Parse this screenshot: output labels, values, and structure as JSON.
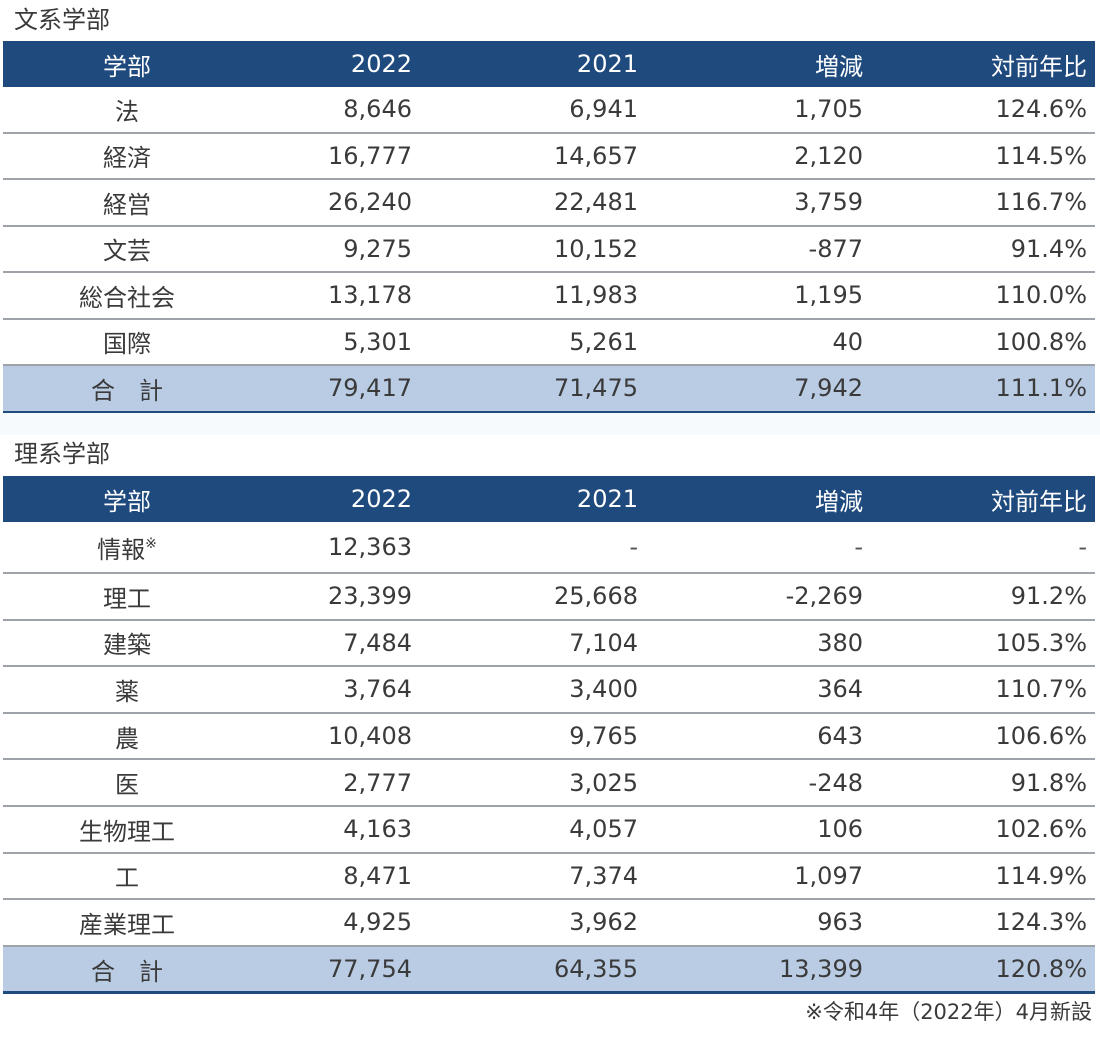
{
  "section1": {
    "title": "文系学部",
    "headers": [
      "学部",
      "2022",
      "2021",
      "増減",
      "対前年比"
    ],
    "rows": [
      [
        "法",
        "8,646",
        "6,941",
        "1,705",
        "124.6%"
      ],
      [
        "経済",
        "16,777",
        "14,657",
        "2,120",
        "114.5%"
      ],
      [
        "経営",
        "26,240",
        "22,481",
        "3,759",
        "116.7%"
      ],
      [
        "文芸",
        "9,275",
        "10,152",
        "-877",
        "91.4%"
      ],
      [
        "総合社会",
        "13,178",
        "11,983",
        "1,195",
        "110.0%"
      ],
      [
        "国際",
        "5,301",
        "5,261",
        "40",
        "100.8%"
      ]
    ],
    "total": [
      "合　計",
      "79,417",
      "71,475",
      "7,942",
      "111.1%"
    ]
  },
  "section2": {
    "title": "理系学部",
    "headers": [
      "学部",
      "2022",
      "2021",
      "増減",
      "対前年比"
    ],
    "rows": [
      [
        "情報",
        "12,363",
        "-",
        "-",
        "-"
      ],
      [
        "理工",
        "23,399",
        "25,668",
        "-2,269",
        "91.2%"
      ],
      [
        "建築",
        "7,484",
        "7,104",
        "380",
        "105.3%"
      ],
      [
        "薬",
        "3,764",
        "3,400",
        "364",
        "110.7%"
      ],
      [
        "農",
        "10,408",
        "9,765",
        "643",
        "106.6%"
      ],
      [
        "医",
        "2,777",
        "3,025",
        "-248",
        "91.8%"
      ],
      [
        "生物理工",
        "4,163",
        "4,057",
        "106",
        "102.6%"
      ],
      [
        "工",
        "8,471",
        "7,374",
        "1,097",
        "114.9%"
      ],
      [
        "産業理工",
        "4,925",
        "3,962",
        "963",
        "124.3%"
      ]
    ],
    "total": [
      "合　計",
      "77,754",
      "64,355",
      "13,399",
      "120.8%"
    ],
    "note_mark": "※"
  },
  "footnote": "※令和4年（2022年）4月新設",
  "colors": {
    "header_bg": "#1f4a7e",
    "total_bg": "#b9cce4",
    "row_border": "#9ea3aa"
  }
}
